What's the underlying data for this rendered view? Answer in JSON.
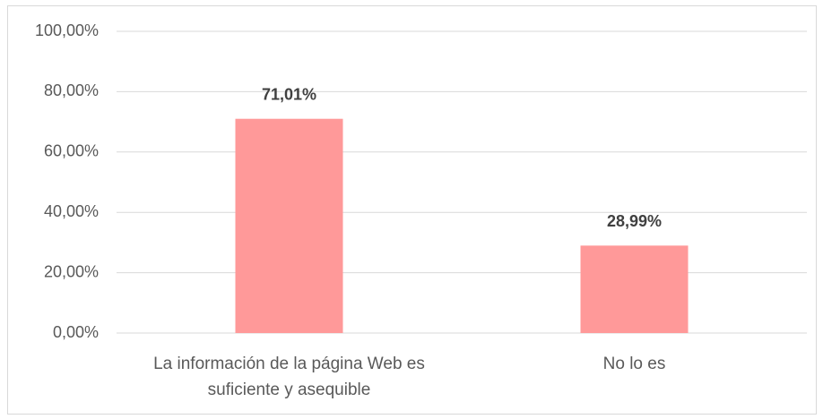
{
  "chart_data": {
    "type": "bar",
    "categories": [
      "La información de la página Web es suficiente y asequible",
      "No lo es"
    ],
    "values": [
      71.01,
      28.99
    ],
    "value_labels": [
      "71,01%",
      "28,99%"
    ],
    "color": "#ff9999",
    "ylim": [
      0,
      100
    ],
    "yticks": [
      {
        "value": 0,
        "label": "0,00%"
      },
      {
        "value": 20,
        "label": "20,00%"
      },
      {
        "value": 40,
        "label": "40,00%"
      },
      {
        "value": 60,
        "label": "60,00%"
      },
      {
        "value": 80,
        "label": "80,00%"
      },
      {
        "value": 100,
        "label": "100,00%"
      }
    ],
    "grid": true
  }
}
